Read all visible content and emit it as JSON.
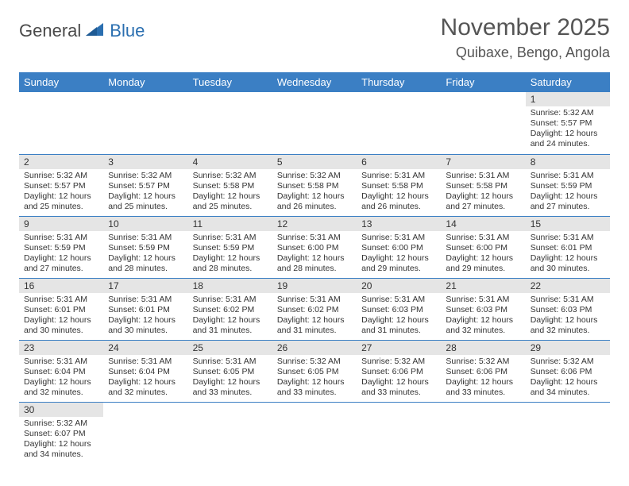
{
  "brand": {
    "part1": "General",
    "part2": "Blue"
  },
  "title": "November 2025",
  "location": "Quibaxe, Bengo, Angola",
  "colors": {
    "header_bg": "#3b7fc4",
    "header_text": "#ffffff",
    "daynum_bg": "#e5e5e5",
    "border": "#3b7fc4",
    "brand_accent": "#2b6fb0",
    "text": "#333333"
  },
  "weekdays": [
    "Sunday",
    "Monday",
    "Tuesday",
    "Wednesday",
    "Thursday",
    "Friday",
    "Saturday"
  ],
  "days": [
    {
      "n": 1,
      "sunrise": "5:32 AM",
      "sunset": "5:57 PM",
      "daylight": "12 hours and 24 minutes."
    },
    {
      "n": 2,
      "sunrise": "5:32 AM",
      "sunset": "5:57 PM",
      "daylight": "12 hours and 25 minutes."
    },
    {
      "n": 3,
      "sunrise": "5:32 AM",
      "sunset": "5:57 PM",
      "daylight": "12 hours and 25 minutes."
    },
    {
      "n": 4,
      "sunrise": "5:32 AM",
      "sunset": "5:58 PM",
      "daylight": "12 hours and 25 minutes."
    },
    {
      "n": 5,
      "sunrise": "5:32 AM",
      "sunset": "5:58 PM",
      "daylight": "12 hours and 26 minutes."
    },
    {
      "n": 6,
      "sunrise": "5:31 AM",
      "sunset": "5:58 PM",
      "daylight": "12 hours and 26 minutes."
    },
    {
      "n": 7,
      "sunrise": "5:31 AM",
      "sunset": "5:58 PM",
      "daylight": "12 hours and 27 minutes."
    },
    {
      "n": 8,
      "sunrise": "5:31 AM",
      "sunset": "5:59 PM",
      "daylight": "12 hours and 27 minutes."
    },
    {
      "n": 9,
      "sunrise": "5:31 AM",
      "sunset": "5:59 PM",
      "daylight": "12 hours and 27 minutes."
    },
    {
      "n": 10,
      "sunrise": "5:31 AM",
      "sunset": "5:59 PM",
      "daylight": "12 hours and 28 minutes."
    },
    {
      "n": 11,
      "sunrise": "5:31 AM",
      "sunset": "5:59 PM",
      "daylight": "12 hours and 28 minutes."
    },
    {
      "n": 12,
      "sunrise": "5:31 AM",
      "sunset": "6:00 PM",
      "daylight": "12 hours and 28 minutes."
    },
    {
      "n": 13,
      "sunrise": "5:31 AM",
      "sunset": "6:00 PM",
      "daylight": "12 hours and 29 minutes."
    },
    {
      "n": 14,
      "sunrise": "5:31 AM",
      "sunset": "6:00 PM",
      "daylight": "12 hours and 29 minutes."
    },
    {
      "n": 15,
      "sunrise": "5:31 AM",
      "sunset": "6:01 PM",
      "daylight": "12 hours and 30 minutes."
    },
    {
      "n": 16,
      "sunrise": "5:31 AM",
      "sunset": "6:01 PM",
      "daylight": "12 hours and 30 minutes."
    },
    {
      "n": 17,
      "sunrise": "5:31 AM",
      "sunset": "6:01 PM",
      "daylight": "12 hours and 30 minutes."
    },
    {
      "n": 18,
      "sunrise": "5:31 AM",
      "sunset": "6:02 PM",
      "daylight": "12 hours and 31 minutes."
    },
    {
      "n": 19,
      "sunrise": "5:31 AM",
      "sunset": "6:02 PM",
      "daylight": "12 hours and 31 minutes."
    },
    {
      "n": 20,
      "sunrise": "5:31 AM",
      "sunset": "6:03 PM",
      "daylight": "12 hours and 31 minutes."
    },
    {
      "n": 21,
      "sunrise": "5:31 AM",
      "sunset": "6:03 PM",
      "daylight": "12 hours and 32 minutes."
    },
    {
      "n": 22,
      "sunrise": "5:31 AM",
      "sunset": "6:03 PM",
      "daylight": "12 hours and 32 minutes."
    },
    {
      "n": 23,
      "sunrise": "5:31 AM",
      "sunset": "6:04 PM",
      "daylight": "12 hours and 32 minutes."
    },
    {
      "n": 24,
      "sunrise": "5:31 AM",
      "sunset": "6:04 PM",
      "daylight": "12 hours and 32 minutes."
    },
    {
      "n": 25,
      "sunrise": "5:31 AM",
      "sunset": "6:05 PM",
      "daylight": "12 hours and 33 minutes."
    },
    {
      "n": 26,
      "sunrise": "5:32 AM",
      "sunset": "6:05 PM",
      "daylight": "12 hours and 33 minutes."
    },
    {
      "n": 27,
      "sunrise": "5:32 AM",
      "sunset": "6:06 PM",
      "daylight": "12 hours and 33 minutes."
    },
    {
      "n": 28,
      "sunrise": "5:32 AM",
      "sunset": "6:06 PM",
      "daylight": "12 hours and 33 minutes."
    },
    {
      "n": 29,
      "sunrise": "5:32 AM",
      "sunset": "6:06 PM",
      "daylight": "12 hours and 34 minutes."
    },
    {
      "n": 30,
      "sunrise": "5:32 AM",
      "sunset": "6:07 PM",
      "daylight": "12 hours and 34 minutes."
    }
  ],
  "labels": {
    "sunrise": "Sunrise:",
    "sunset": "Sunset:",
    "daylight": "Daylight:"
  },
  "first_weekday_index": 6
}
